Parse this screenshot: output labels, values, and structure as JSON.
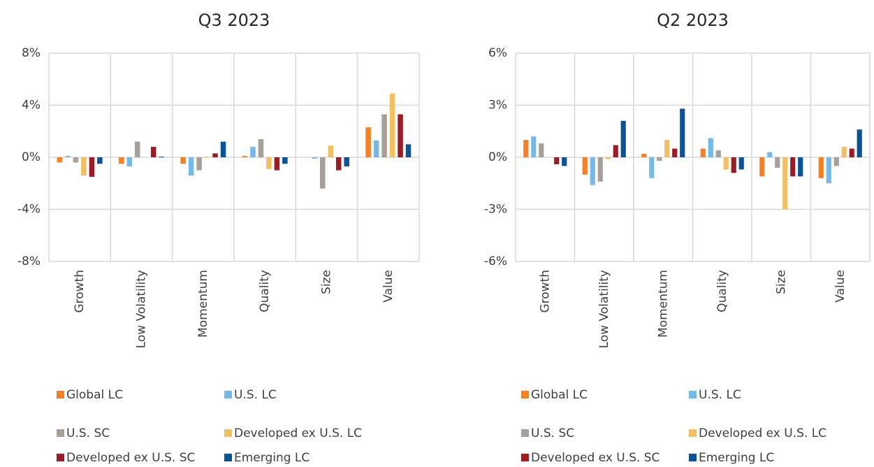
{
  "chart_data": [
    {
      "type": "bar",
      "title": "Q3 2023",
      "categories": [
        "Growth",
        "Low Volatility",
        "Momentum",
        "Quality",
        "Size",
        "Value"
      ],
      "series": [
        {
          "name": "Global LC",
          "color": "#f58025",
          "values": [
            -0.4,
            -0.5,
            -0.5,
            0.1,
            0,
            2.3
          ]
        },
        {
          "name": "U.S. LC",
          "color": "#74b9e7",
          "values": [
            0.1,
            -0.7,
            -1.4,
            0.8,
            -0.1,
            1.3
          ]
        },
        {
          "name": "U.S. SC",
          "color": "#a5a09a",
          "values": [
            -0.4,
            1.2,
            -1.0,
            1.4,
            -2.4,
            3.3
          ]
        },
        {
          "name": "Developed ex U.S. LC",
          "color": "#f2c063",
          "values": [
            -1.4,
            0,
            0.05,
            -0.9,
            0.9,
            4.9
          ]
        },
        {
          "name": "Developed ex U.S. SC",
          "color": "#9b1b27",
          "values": [
            -1.5,
            0.8,
            0.3,
            -1.0,
            -1.0,
            3.3
          ]
        },
        {
          "name": "Emerging LC",
          "color": "#0b5394",
          "values": [
            -0.5,
            0.05,
            1.2,
            -0.5,
            -0.7,
            1.0
          ]
        }
      ],
      "ylim": [
        -8,
        8
      ],
      "yticks": [
        {
          "value": -8,
          "label": "-8%"
        },
        {
          "value": -4,
          "label": "-4%"
        },
        {
          "value": 0,
          "label": "0%"
        },
        {
          "value": 4,
          "label": "4%"
        },
        {
          "value": 8,
          "label": "8%"
        }
      ],
      "grid": true,
      "legend": "bottom"
    },
    {
      "type": "bar",
      "title": "Q2 2023",
      "categories": [
        "Growth",
        "Low Volatility",
        "Momentum",
        "Quality",
        "Size",
        "Value"
      ],
      "series": [
        {
          "name": "Global LC",
          "color": "#f58025",
          "values": [
            1.0,
            -1.0,
            0.2,
            0.5,
            -1.1,
            -1.2
          ]
        },
        {
          "name": "U.S. LC",
          "color": "#74b9e7",
          "values": [
            1.2,
            -1.6,
            -1.2,
            1.1,
            0.3,
            -1.5
          ]
        },
        {
          "name": "U.S. SC",
          "color": "#a5a09a",
          "values": [
            0.8,
            -1.4,
            -0.2,
            0.4,
            -0.6,
            -0.5
          ]
        },
        {
          "name": "Developed ex U.S. LC",
          "color": "#f2c063",
          "values": [
            0,
            -0.1,
            1.0,
            -0.7,
            -3.0,
            0.6
          ]
        },
        {
          "name": "Developed ex U.S. SC",
          "color": "#9b1b27",
          "values": [
            -0.4,
            0.7,
            0.5,
            -0.9,
            -1.1,
            0.5
          ]
        },
        {
          "name": "Emerging LC",
          "color": "#0b5394",
          "values": [
            -0.5,
            2.1,
            2.8,
            -0.7,
            -1.1,
            1.6
          ]
        }
      ],
      "ylim": [
        -6,
        6
      ],
      "yticks": [
        {
          "value": -6,
          "label": "-6%"
        },
        {
          "value": -3,
          "label": "-3%"
        },
        {
          "value": 0,
          "label": "0%"
        },
        {
          "value": 3,
          "label": "3%"
        },
        {
          "value": 6,
          "label": "6%"
        }
      ],
      "grid": true,
      "legend": "bottom"
    }
  ]
}
